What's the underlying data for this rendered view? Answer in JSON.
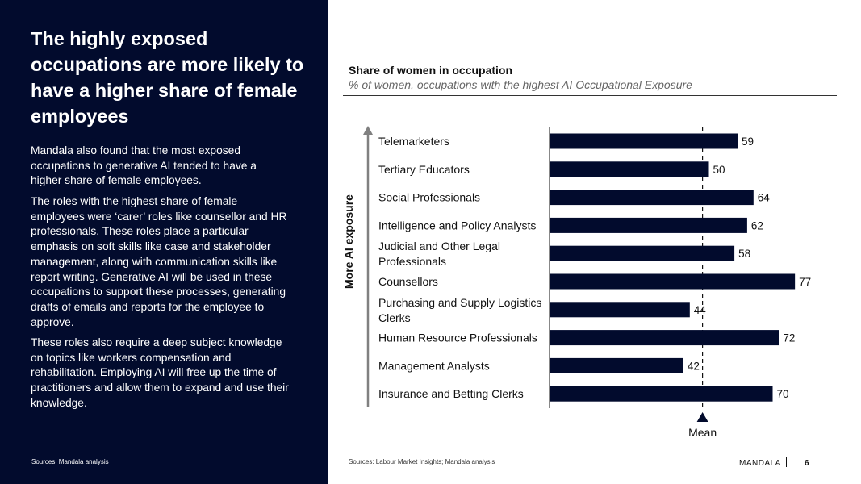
{
  "left_panel": {
    "headline": "The highly exposed occupations are more likely to have a higher share of female employees",
    "paragraphs": [
      "Mandala also found that the most exposed occupations to generative AI tended to have a higher share of female employees.",
      "The roles with the highest share of female employees were ‘carer’ roles like counsellor and HR professionals. These roles place a particular emphasis on soft skills like case and stakeholder management, along with communication skills like report writing. Generative AI will be used in these occupations to support these processes, generating drafts of emails and reports for the employee to approve.",
      "These roles also require a deep subject knowledge on topics like workers compensation and rehabilitation. Employing AI will free up the time of practitioners and allow them to expand and use their knowledge."
    ],
    "source": "Sources: Mandala analysis"
  },
  "right_panel": {
    "source": "Sources: Labour Market Insights; Mandala analysis",
    "brand": "MANDALA",
    "page_number": "6"
  },
  "colors": {
    "panel_bg": "#020b2d",
    "bar": "#020b2d"
  },
  "chart_data": {
    "type": "bar",
    "orientation": "horizontal",
    "title": "Share of women in occupation",
    "subtitle": "% of women, occupations with the highest AI Occupational Exposure",
    "ylabel": "More AI exposure",
    "xlabel": "",
    "categories": [
      [
        "Telemarketers"
      ],
      [
        "Tertiary Educators"
      ],
      [
        "Social Professionals"
      ],
      [
        "Intelligence and Policy Analysts"
      ],
      [
        "Judicial and Other Legal",
        "Professionals"
      ],
      [
        "Counsellors"
      ],
      [
        "Purchasing and Supply Logistics",
        "Clerks"
      ],
      [
        "Human Resource Professionals"
      ],
      [
        "Management Analysts"
      ],
      [
        "Insurance and Betting Clerks"
      ]
    ],
    "values": [
      59,
      50,
      64,
      62,
      58,
      77,
      44,
      72,
      42,
      70
    ],
    "xlim": [
      0,
      80
    ],
    "mean_value": 48,
    "mean_label": "Mean",
    "grid": false
  }
}
